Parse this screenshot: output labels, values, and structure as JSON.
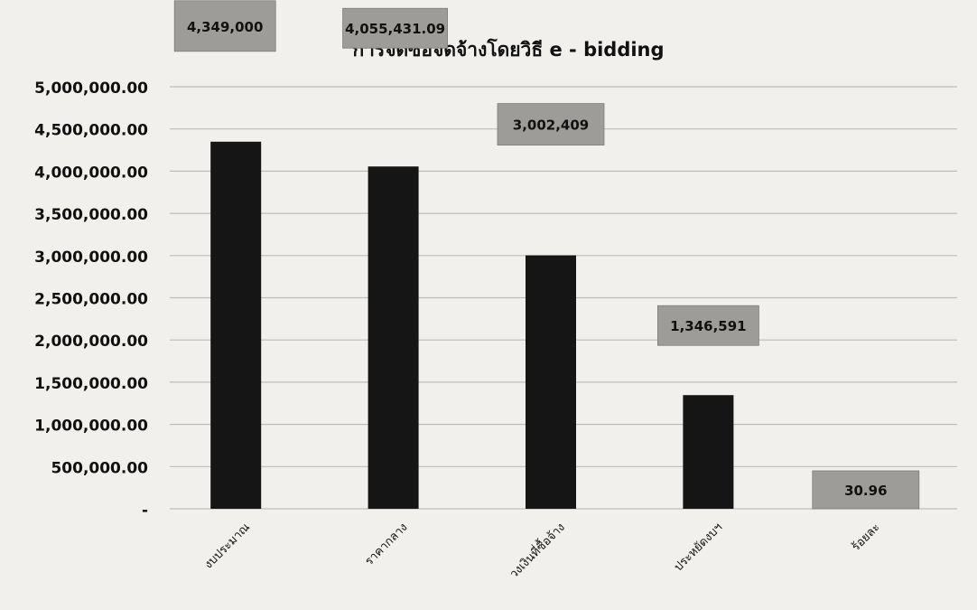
{
  "chart_data": {
    "type": "bar",
    "title": "การจัดซื้อจัดจ้างโดยวิธี e - bidding",
    "categories": [
      "งบประมาณ",
      "ราคากลาง",
      "วงเงินที่ซื้อจ้าง",
      "ประหยัดงบฯ",
      "ร้อยละ"
    ],
    "values": [
      4349000,
      4055431.09,
      3002409,
      1346591,
      30.96
    ],
    "data_labels": [
      "4,349,000",
      "4,055,431.09",
      "3,002,409",
      "1,346,591",
      "30.96"
    ],
    "y_ticks": [
      0,
      500000,
      1000000,
      1500000,
      2000000,
      2500000,
      3000000,
      3500000,
      4000000,
      4500000,
      5000000
    ],
    "y_tick_labels": [
      "-",
      "500,000.00",
      "1,000,000.00",
      "1,500,000.00",
      "2,000,000.00",
      "2,500,000.00",
      "3,000,000.00",
      "3,500,000.00",
      "4,000,000.00",
      "4,500,000.00",
      "5,000,000.00"
    ],
    "ylim": [
      0,
      5000000
    ],
    "xlabel": "",
    "ylabel": "",
    "grid": true,
    "colors": {
      "bar": "#151515",
      "label_box": "#9d9c98",
      "grid": "#bdbcb8",
      "text": "#111111",
      "background": "#f1f0ec"
    }
  }
}
